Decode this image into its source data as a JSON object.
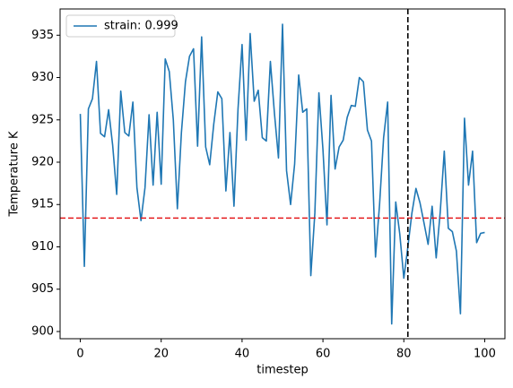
{
  "chart_data": {
    "type": "line",
    "xlabel": "timestep",
    "ylabel": "Temperature K",
    "x": [
      0,
      1,
      2,
      3,
      4,
      5,
      6,
      7,
      8,
      9,
      10,
      11,
      12,
      13,
      14,
      15,
      16,
      17,
      18,
      19,
      20,
      21,
      22,
      23,
      24,
      25,
      26,
      27,
      28,
      29,
      30,
      31,
      32,
      33,
      34,
      35,
      36,
      37,
      38,
      39,
      40,
      41,
      42,
      43,
      44,
      45,
      46,
      47,
      48,
      49,
      50,
      51,
      52,
      53,
      54,
      55,
      56,
      57,
      58,
      59,
      60,
      61,
      62,
      63,
      64,
      65,
      66,
      67,
      68,
      69,
      70,
      71,
      72,
      73,
      74,
      75,
      76,
      77,
      78,
      79,
      80,
      81,
      82,
      83,
      84,
      85,
      86,
      87,
      88,
      89,
      90,
      91,
      92,
      93,
      94,
      95,
      96,
      97,
      98,
      99,
      100
    ],
    "series": [
      {
        "name": "strain: 0.999",
        "color": "#1f77b4",
        "values": [
          925.7,
          907.7,
          926.3,
          927.5,
          931.9,
          923.4,
          923.0,
          926.2,
          922.0,
          916.2,
          928.4,
          923.5,
          923.1,
          927.1,
          917.0,
          913.1,
          917.0,
          925.6,
          917.3,
          925.9,
          917.4,
          932.2,
          930.7,
          925.0,
          914.5,
          923.5,
          929.5,
          932.5,
          933.4,
          921.9,
          934.8,
          921.8,
          919.7,
          924.5,
          928.3,
          927.5,
          916.6,
          923.5,
          914.8,
          926.3,
          933.9,
          922.6,
          935.2,
          927.2,
          928.5,
          922.9,
          922.5,
          931.9,
          925.8,
          920.5,
          936.3,
          919.0,
          915.0,
          919.8,
          930.3,
          925.9,
          926.3,
          906.6,
          914.0,
          928.2,
          921.5,
          912.6,
          927.9,
          919.2,
          921.8,
          922.6,
          925.3,
          926.7,
          926.6,
          930.0,
          929.5,
          923.8,
          922.5,
          908.8,
          915.0,
          922.9,
          927.1,
          900.9,
          915.3,
          911.5,
          906.3,
          910.0,
          914.0,
          916.9,
          915.2,
          912.8,
          910.3,
          914.8,
          908.7,
          914.1,
          921.3,
          912.2,
          911.8,
          909.5,
          902.1,
          925.2,
          917.3,
          921.3,
          910.5,
          911.6,
          911.7
        ]
      }
    ],
    "reference_lines": [
      {
        "axis": "y",
        "value": 913.4,
        "color": "#e41a1c"
      },
      {
        "axis": "x",
        "value": 81,
        "color": "#000000"
      }
    ],
    "xlim": [
      -5,
      105
    ],
    "ylim": [
      899.15,
      938.1
    ],
    "xticks": [
      0,
      20,
      40,
      60,
      80,
      100
    ],
    "yticks": [
      900,
      905,
      910,
      915,
      920,
      925,
      930,
      935
    ],
    "legend": "upper left"
  }
}
